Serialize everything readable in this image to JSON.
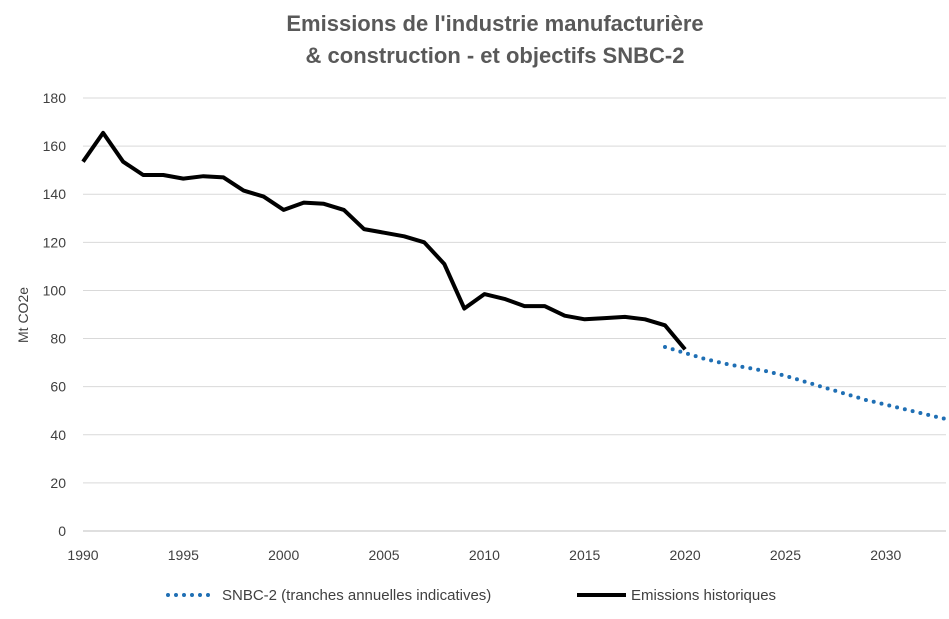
{
  "chart_data": {
    "type": "line",
    "title_lines": [
      "Emissions de l'industrie manufacturière",
      "& construction - et objectifs SNBC-2"
    ],
    "xlabel": "",
    "ylabel": "Mt CO2e",
    "xlim": [
      1990,
      2033
    ],
    "ylim": [
      0,
      180
    ],
    "xticks": [
      1990,
      1995,
      2000,
      2005,
      2010,
      2015,
      2020,
      2025,
      2030
    ],
    "yticks": [
      0,
      20,
      40,
      60,
      80,
      100,
      120,
      140,
      160,
      180
    ],
    "grid": true,
    "legend_position": "bottom",
    "series": [
      {
        "name": "SNBC-2  (tranches annuelles indicatives)",
        "style": "dotted",
        "color": "#1f6fb4",
        "x": [
          2019,
          2020,
          2021,
          2022,
          2023,
          2024,
          2025,
          2026,
          2027,
          2028,
          2029,
          2030,
          2031,
          2032,
          2033
        ],
        "y": [
          76.5,
          74,
          71.5,
          69.5,
          68,
          66.5,
          64.5,
          62,
          59.5,
          57,
          54.5,
          52.5,
          50.5,
          48.5,
          46.5
        ]
      },
      {
        "name": "Emissions historiques",
        "style": "solid",
        "color": "#000000",
        "x": [
          1990,
          1991,
          1992,
          1993,
          1994,
          1995,
          1996,
          1997,
          1998,
          1999,
          2000,
          2001,
          2002,
          2003,
          2004,
          2005,
          2006,
          2007,
          2008,
          2009,
          2010,
          2011,
          2012,
          2013,
          2014,
          2015,
          2016,
          2017,
          2018,
          2019,
          2020
        ],
        "y": [
          153.5,
          165.5,
          153.5,
          148,
          148,
          146.5,
          147.5,
          147,
          141.5,
          139,
          133.5,
          136.5,
          136,
          133.5,
          125.5,
          124,
          122.5,
          120,
          111,
          92.5,
          98.5,
          96.5,
          93.5,
          93.5,
          89.5,
          88,
          88.5,
          89,
          88,
          85.5,
          75.5
        ]
      }
    ]
  }
}
